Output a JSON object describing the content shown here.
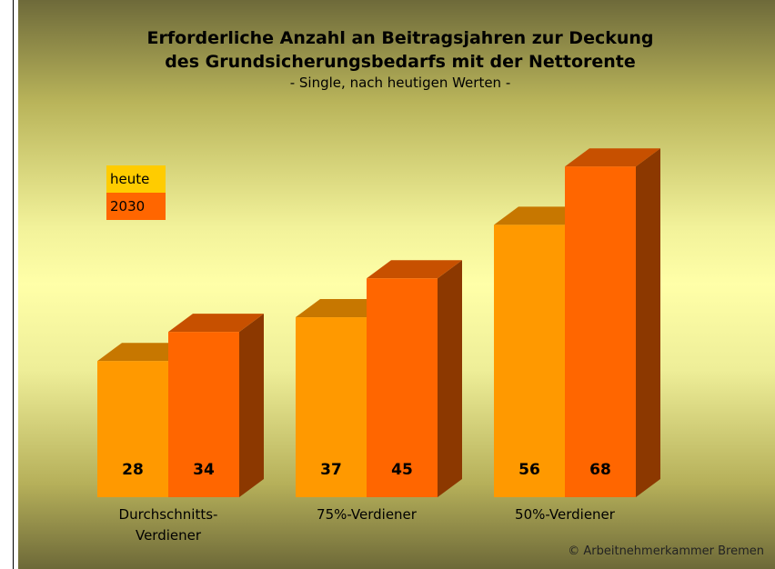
{
  "chart_data": {
    "type": "bar3d",
    "title": "Erforderliche Anzahl an Beitragsjahren zur Deckung",
    "title_line2": "des Grundsicherungsbedarfs mit der Nettorente",
    "subtitle": "- Single, nach heutigen Werten -",
    "categories": [
      "Durchschnitts-\nVerdiener",
      "75%-Verdiener",
      "50%-Verdiener"
    ],
    "series": [
      {
        "name": "heute",
        "color": "#ff9900",
        "values": [
          28,
          37,
          56
        ]
      },
      {
        "name": "2030",
        "color": "#ff6600",
        "values": [
          34,
          45,
          68
        ]
      }
    ],
    "source": "© Arbeitnehmerkammer Bremen"
  }
}
